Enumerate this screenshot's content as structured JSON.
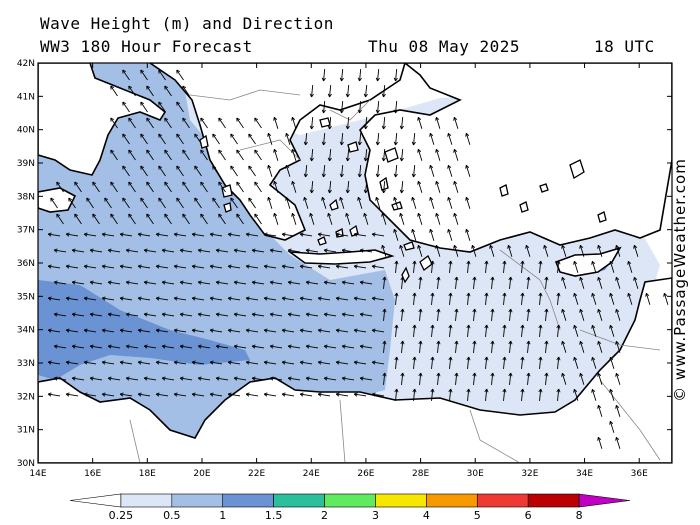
{
  "header": {
    "title": "Wave Height (m) and Direction",
    "subtitle": "WW3 180 Hour Forecast",
    "date": "Thu 08 May 2025",
    "time": "18 UTC"
  },
  "credit": "© www.PassageWeather.com",
  "map": {
    "lat_labels": [
      "42N",
      "41N",
      "40N",
      "39N",
      "38N",
      "37N",
      "36N",
      "35N",
      "34N",
      "33N",
      "32N",
      "31N",
      "30N"
    ],
    "lon_labels": [
      "14E",
      "16E",
      "18E",
      "20E",
      "22E",
      "24E",
      "26E",
      "28E",
      "30E",
      "32E",
      "34E",
      "36E"
    ]
  },
  "legend": {
    "colors": [
      "#ffffff",
      "#dde6f6",
      "#a4bfe6",
      "#6b93d3",
      "#2bbf9c",
      "#5fea5f",
      "#f7e600",
      "#f79a00",
      "#ee3a33",
      "#bb0000",
      "#c000c0"
    ],
    "tick_labels": [
      "0.25",
      "0.5",
      "1",
      "1.5",
      "2",
      "3",
      "4",
      "5",
      "6",
      "8"
    ]
  }
}
